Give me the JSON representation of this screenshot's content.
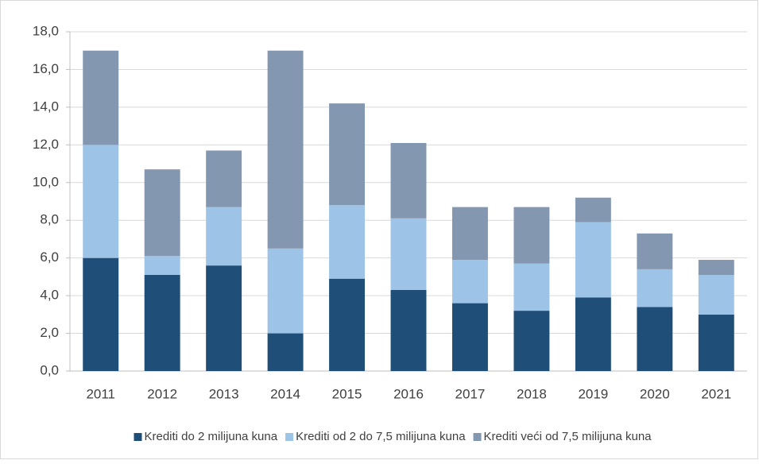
{
  "chart_data": {
    "type": "stacked_bar",
    "categories": [
      "2011",
      "2012",
      "2013",
      "2014",
      "2015",
      "2016",
      "2017",
      "2018",
      "2019",
      "2020",
      "2021"
    ],
    "series": [
      {
        "name": "Krediti do 2 milijuna kuna",
        "color": "#1f4e79",
        "values": [
          6.0,
          5.1,
          5.6,
          2.0,
          4.9,
          4.3,
          3.6,
          3.2,
          3.9,
          3.4,
          3.0
        ]
      },
      {
        "name": "Krediti od 2 do 7,5 milijuna kuna",
        "color": "#9dc3e6",
        "values": [
          6.0,
          1.0,
          3.1,
          4.5,
          3.9,
          3.8,
          2.3,
          2.5,
          4.0,
          2.0,
          2.1
        ]
      },
      {
        "name": "Krediti veći od 7,5 milijuna kuna",
        "color": "#8497b0",
        "values": [
          5.0,
          4.6,
          3.0,
          10.5,
          5.4,
          4.0,
          2.8,
          3.0,
          1.3,
          1.9,
          0.8
        ]
      }
    ],
    "ylim": [
      0,
      18
    ],
    "yticks": [
      {
        "value": 0,
        "label": "0,0"
      },
      {
        "value": 2,
        "label": "2,0"
      },
      {
        "value": 4,
        "label": "4,0"
      },
      {
        "value": 6,
        "label": "6,0"
      },
      {
        "value": 8,
        "label": "8,0"
      },
      {
        "value": 10,
        "label": "10,0"
      },
      {
        "value": 12,
        "label": "12,0"
      },
      {
        "value": 14,
        "label": "14,0"
      },
      {
        "value": 16,
        "label": "16,0"
      },
      {
        "value": 18,
        "label": "18,0"
      }
    ],
    "grid": true,
    "legend": "bottom"
  }
}
